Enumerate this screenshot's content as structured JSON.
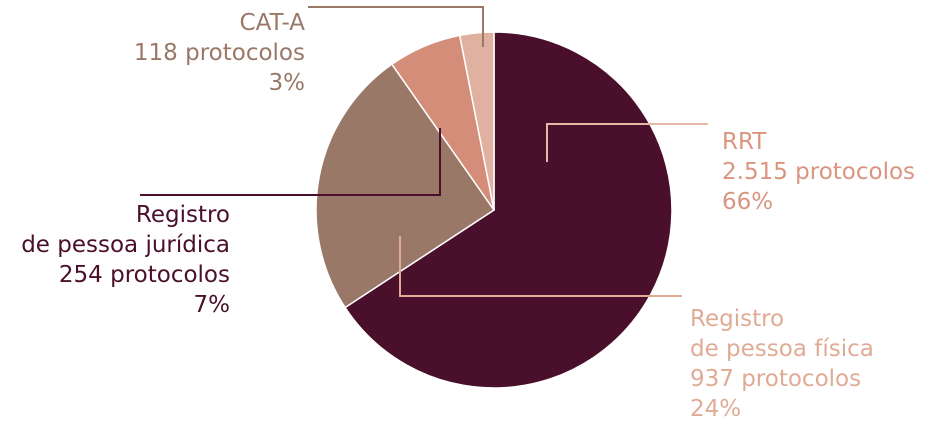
{
  "chart_data": {
    "type": "pie",
    "slices": [
      {
        "label": "RRT",
        "count_text": "2.515 protocolos",
        "pct_text": "66%",
        "value": 2515,
        "color": "#4a0f2a",
        "label_color": "#d9957f"
      },
      {
        "label": "Registro de pessoa física",
        "label_lines": [
          "Registro",
          "de pessoa física"
        ],
        "count_text": "937 protocolos",
        "pct_text": "24%",
        "value": 937,
        "color": "#9a7868",
        "label_color": "#e0ab95"
      },
      {
        "label": "Registro de pessoa jurídica",
        "label_lines": [
          "Registro",
          "de pessoa jurídica"
        ],
        "count_text": "254 protocolos",
        "pct_text": "7%",
        "value": 254,
        "color": "#d38d79",
        "label_color": "#4a0f2a"
      },
      {
        "label": "CAT-A",
        "count_text": "118 protocolos",
        "pct_text": "3%",
        "value": 118,
        "color": "#e0b1a0",
        "label_color": "#9a7868"
      }
    ],
    "colors": {
      "slice_border": "#ffffff",
      "leader_rrt": "#e8b8a6",
      "leader_pf": "#e0ab95",
      "leader_pj": "#4a0f2a",
      "leader_cat": "#9a7868"
    }
  }
}
